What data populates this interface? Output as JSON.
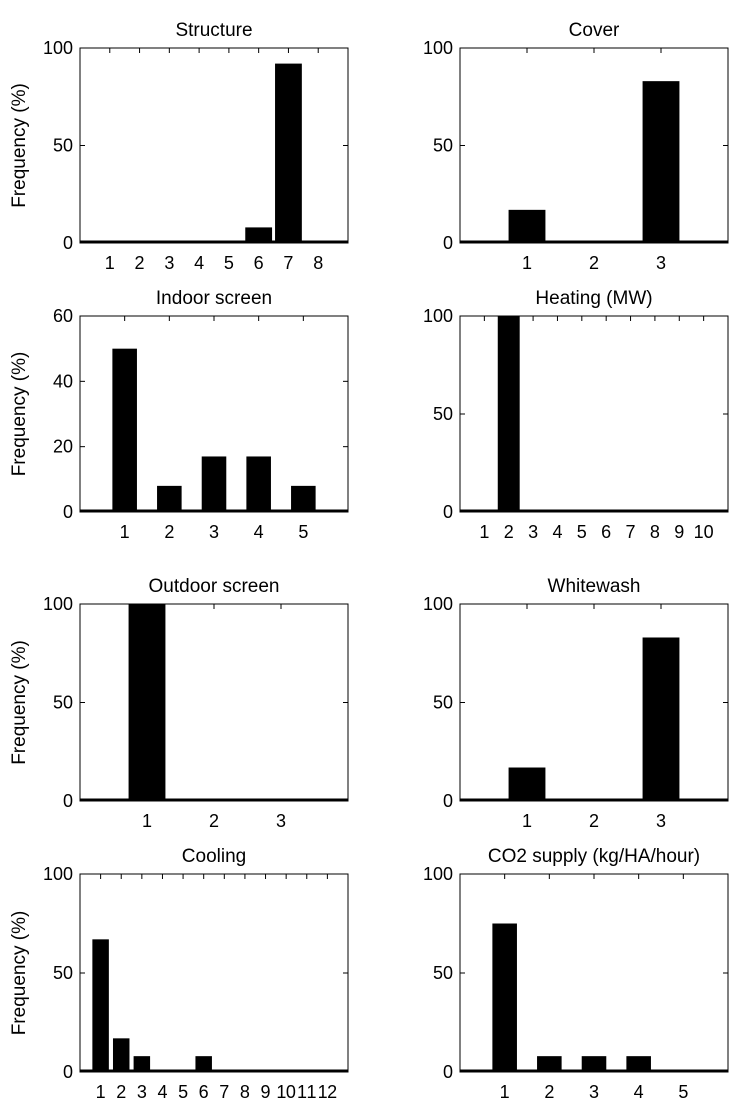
{
  "figure": {
    "y_axis_label": "Frequency (%)"
  },
  "chart_data": [
    {
      "type": "bar",
      "title": "Structure",
      "ylabel": "Frequency (%)",
      "categories": [
        "1",
        "2",
        "3",
        "4",
        "5",
        "6",
        "7",
        "8"
      ],
      "values": [
        0,
        0,
        0,
        0,
        0,
        8,
        92,
        0
      ],
      "ylim": [
        0,
        100
      ],
      "yticks": [
        0,
        50,
        100
      ],
      "xlim": [
        0,
        9
      ]
    },
    {
      "type": "bar",
      "title": "Cover",
      "ylabel": "",
      "categories": [
        "1",
        "2",
        "3"
      ],
      "values": [
        17,
        0,
        83
      ],
      "ylim": [
        0,
        100
      ],
      "yticks": [
        0,
        50,
        100
      ],
      "xlim": [
        0,
        4
      ]
    },
    {
      "type": "bar",
      "title": "Indoor screen",
      "ylabel": "Frequency (%)",
      "categories": [
        "1",
        "2",
        "3",
        "4",
        "5"
      ],
      "values": [
        50,
        8,
        17,
        17,
        8
      ],
      "ylim": [
        0,
        60
      ],
      "yticks": [
        0,
        20,
        40,
        60
      ],
      "xlim": [
        0,
        6
      ]
    },
    {
      "type": "bar",
      "title": "Heating (MW)",
      "ylabel": "",
      "categories": [
        "1",
        "2",
        "3",
        "4",
        "5",
        "6",
        "7",
        "8",
        "9",
        "10"
      ],
      "values": [
        0,
        100,
        0,
        0,
        0,
        0,
        0,
        0,
        0,
        0
      ],
      "ylim": [
        0,
        100
      ],
      "yticks": [
        0,
        50,
        100
      ],
      "xlim": [
        0,
        11
      ]
    },
    {
      "type": "bar",
      "title": "Outdoor screen",
      "ylabel": "Frequency (%)",
      "categories": [
        "1",
        "2",
        "3"
      ],
      "values": [
        100,
        0,
        0
      ],
      "ylim": [
        0,
        100
      ],
      "yticks": [
        0,
        50,
        100
      ],
      "xlim": [
        0,
        4
      ]
    },
    {
      "type": "bar",
      "title": "Whitewash",
      "ylabel": "",
      "categories": [
        "1",
        "2",
        "3"
      ],
      "values": [
        17,
        0,
        83
      ],
      "ylim": [
        0,
        100
      ],
      "yticks": [
        0,
        50,
        100
      ],
      "xlim": [
        0,
        4
      ]
    },
    {
      "type": "bar",
      "title": "Cooling",
      "ylabel": "Frequency (%)",
      "categories": [
        "1",
        "2",
        "3",
        "4",
        "5",
        "6",
        "7",
        "8",
        "9",
        "10",
        "11",
        "12"
      ],
      "values": [
        67,
        17,
        8,
        0,
        0,
        8,
        0,
        0,
        0,
        0,
        0,
        0
      ],
      "ylim": [
        0,
        100
      ],
      "yticks": [
        0,
        50,
        100
      ],
      "xlim": [
        0,
        13
      ]
    },
    {
      "type": "bar",
      "title": "CO2 supply (kg/HA/hour)",
      "ylabel": "",
      "categories": [
        "1",
        "2",
        "3",
        "4",
        "5"
      ],
      "values": [
        75,
        8,
        8,
        8,
        0
      ],
      "ylim": [
        0,
        100
      ],
      "yticks": [
        0,
        50,
        100
      ],
      "xlim": [
        0,
        6
      ]
    }
  ]
}
